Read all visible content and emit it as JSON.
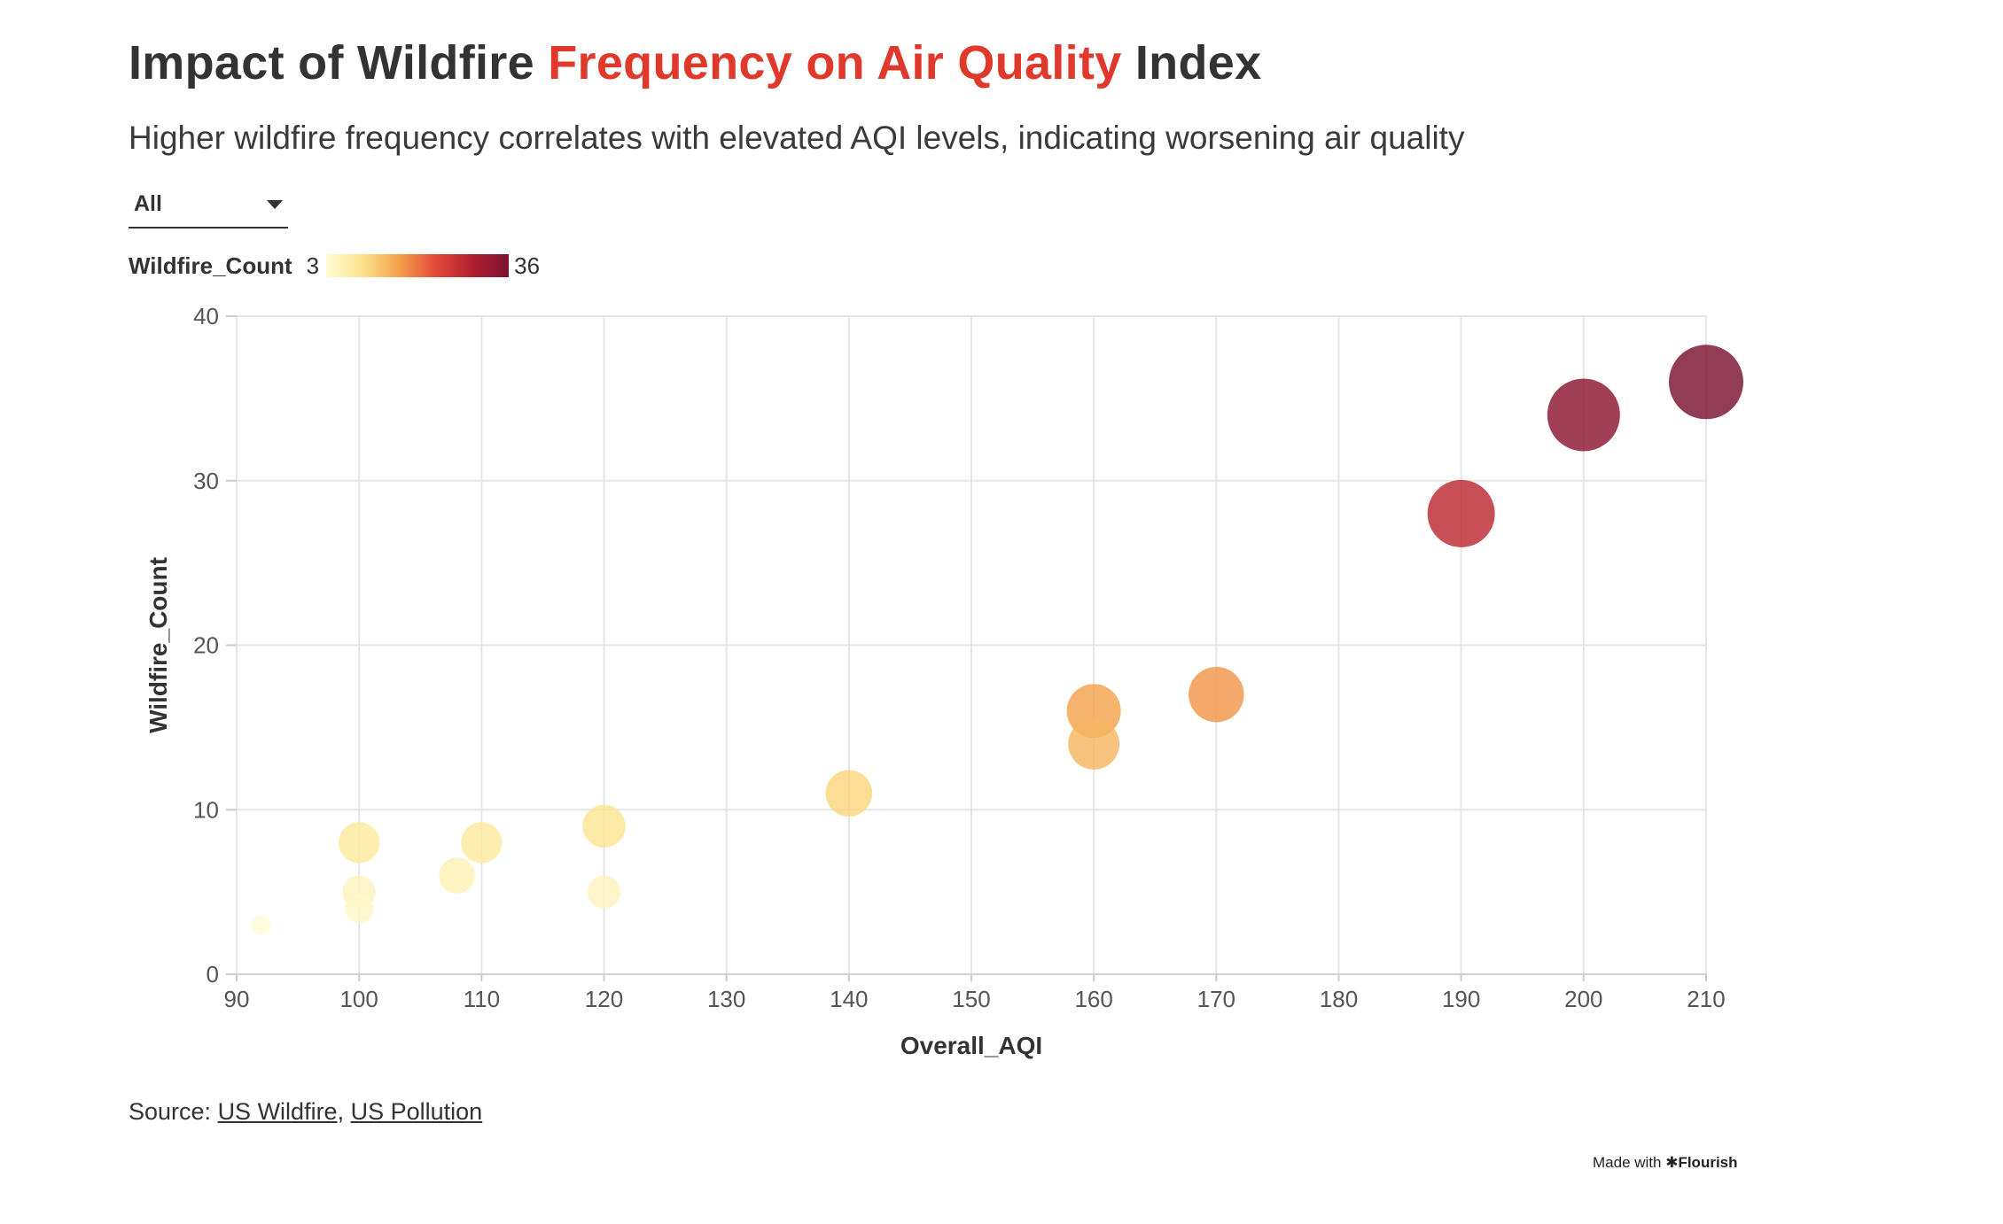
{
  "header": {
    "title_before": "Impact of Wildfire ",
    "title_highlight": "Frequency on Air Quality",
    "title_after": " Index",
    "subtitle": "Higher wildfire frequency correlates with elevated AQI levels, indicating worsening air quality"
  },
  "filter": {
    "selected": "All"
  },
  "legend": {
    "title": "Wildfire_Count",
    "min_label": "3",
    "max_label": "36"
  },
  "colors": {
    "title_highlight": "#e0392b",
    "gradient": [
      "#fffcd4",
      "#fce38c",
      "#f4a04b",
      "#e34a3a",
      "#b21f2f",
      "#7a1130"
    ]
  },
  "chart_data": {
    "type": "scatter",
    "xlabel": "Overall_AQI",
    "ylabel": "Wildfire_Count",
    "xlim": [
      90,
      210
    ],
    "ylim": [
      0,
      40
    ],
    "xticks": [
      90,
      100,
      110,
      120,
      130,
      140,
      150,
      160,
      170,
      180,
      190,
      200,
      210
    ],
    "yticks": [
      0,
      10,
      20,
      30,
      40
    ],
    "grid": true,
    "color_by": "Wildfire_Count",
    "size_by": "Wildfire_Count",
    "color_range": [
      3,
      36
    ],
    "points": [
      {
        "x": 92,
        "y": 3
      },
      {
        "x": 100,
        "y": 4
      },
      {
        "x": 100,
        "y": 5
      },
      {
        "x": 100,
        "y": 8
      },
      {
        "x": 108,
        "y": 6
      },
      {
        "x": 110,
        "y": 8
      },
      {
        "x": 120,
        "y": 5
      },
      {
        "x": 120,
        "y": 9
      },
      {
        "x": 140,
        "y": 11
      },
      {
        "x": 160,
        "y": 14
      },
      {
        "x": 160,
        "y": 16
      },
      {
        "x": 170,
        "y": 17
      },
      {
        "x": 190,
        "y": 28
      },
      {
        "x": 200,
        "y": 34
      },
      {
        "x": 210,
        "y": 36
      }
    ]
  },
  "footer": {
    "source_prefix": "Source: ",
    "source_link_1": "US Wildfire",
    "source_separator": ", ",
    "source_link_2": "US Pollution",
    "made_with": "Made with ",
    "brand": "✱Flourish"
  }
}
